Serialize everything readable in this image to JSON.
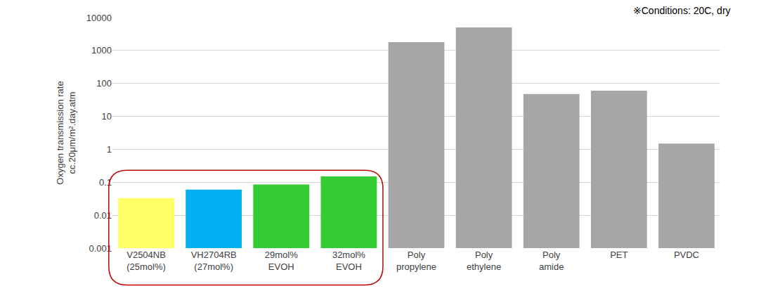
{
  "chart_data": {
    "type": "bar",
    "annotation": "※Conditions: 20C, dry",
    "y_label": "Oxygen transmission rate\ncc.20μm/m².day.atm",
    "categories": [
      "V2504NB\n(25mol%)",
      "VH2704RB\n(27mol%)",
      "29mol%\nEVOH",
      "32mol%\nEVOH",
      "Poly\npropylene",
      "Poly\nethylene",
      "Poly\namide",
      "PET",
      "PVDC"
    ],
    "values": [
      0.033,
      0.06,
      0.085,
      0.15,
      1800,
      5000,
      48,
      60,
      1.5
    ],
    "colors": [
      "#ffff66",
      "#00b0f0",
      "#33cc33",
      "#33cc33",
      "#a6a6a6",
      "#a6a6a6",
      "#a6a6a6",
      "#a6a6a6",
      "#a6a6a6"
    ],
    "log": "y",
    "ylim": [
      0.001,
      10000
    ],
    "yticks": [
      0.001,
      0.01,
      0.1,
      1,
      10,
      100,
      1000,
      10000
    ],
    "grid": true
  }
}
